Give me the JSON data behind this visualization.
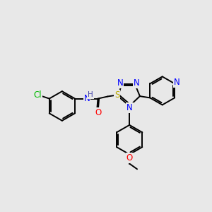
{
  "bg_color": "#e8e8e8",
  "bond_color": "#000000",
  "bond_width": 1.4,
  "atom_colors": {
    "N": "#0000ff",
    "O": "#ff0000",
    "S": "#bbaa00",
    "Cl": "#00bb00",
    "C": "#000000",
    "H": "#4444aa"
  },
  "font_size": 8.5,
  "fig_size": [
    3.0,
    3.0
  ],
  "dpi": 100
}
